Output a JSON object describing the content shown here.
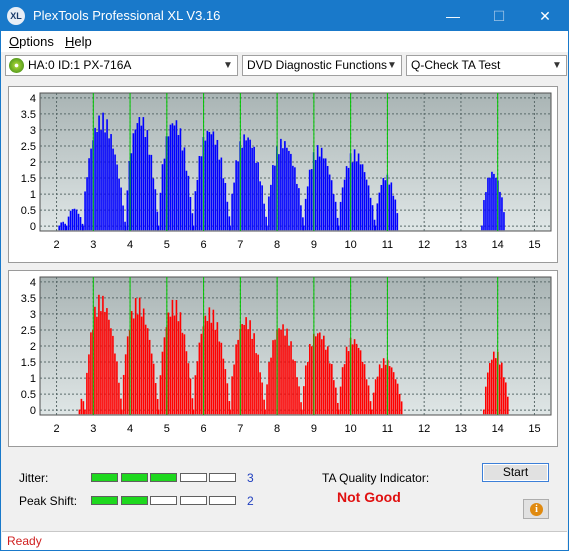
{
  "window": {
    "title": "PlexTools Professional XL V3.16",
    "app_icon_label": "XL",
    "minimize_label": "—",
    "maximize_label": "☐",
    "close_label": "✕"
  },
  "menu": {
    "items": [
      {
        "label": "Options",
        "accel": "O"
      },
      {
        "label": "Help",
        "accel": "H"
      }
    ]
  },
  "toolbar": {
    "drive": "HA:0 ID:1  PX-716A",
    "function": "DVD Diagnostic Functions",
    "test": "Q-Check TA Test"
  },
  "colors": {
    "top_series": "#0000ff",
    "bottom_series": "#ff0000",
    "marker_lines": "#00c800",
    "plot_bg_top": "#a9b4b4",
    "plot_bg_bottom": "#dfe6e6",
    "status_text": "#d02020",
    "not_good": "#e01010"
  },
  "chart_data": [
    {
      "type": "area",
      "x_ticks": [
        "2",
        "3",
        "4",
        "5",
        "6",
        "7",
        "8",
        "9",
        "10",
        "11",
        "12",
        "13",
        "14",
        "15"
      ],
      "y_ticks": [
        "0",
        "0.5",
        "1",
        "1.5",
        "2",
        "2.5",
        "3",
        "3.5",
        "4"
      ],
      "xlim": [
        1.55,
        15.45
      ],
      "ylim": [
        -0.15,
        4.15
      ],
      "grid": true,
      "marker_lines_x": [
        3,
        4,
        5,
        6,
        7,
        8,
        9,
        10,
        11,
        14
      ],
      "series": [
        {
          "color": "#0000ff",
          "peaks": [
            {
              "x0": 2.05,
              "x1": 2.25,
              "peak": 0.15
            },
            {
              "x0": 2.25,
              "x1": 2.7,
              "peak": 0.6
            },
            {
              "x0": 2.7,
              "x1": 3.85,
              "peak": 3.55
            },
            {
              "x0": 3.85,
              "x1": 4.75,
              "peak": 3.6
            },
            {
              "x0": 4.75,
              "x1": 5.7,
              "peak": 3.5
            },
            {
              "x0": 5.7,
              "x1": 6.7,
              "peak": 3.2
            },
            {
              "x0": 6.7,
              "x1": 7.7,
              "peak": 3.0
            },
            {
              "x0": 7.7,
              "x1": 8.7,
              "peak": 2.8
            },
            {
              "x0": 8.7,
              "x1": 9.65,
              "peak": 2.55
            },
            {
              "x0": 9.65,
              "x1": 10.65,
              "peak": 2.4
            },
            {
              "x0": 10.65,
              "x1": 11.3,
              "peak": 1.65
            },
            {
              "x0": 13.55,
              "x1": 14.2,
              "peak": 1.8
            }
          ]
        }
      ]
    },
    {
      "type": "area",
      "x_ticks": [
        "2",
        "3",
        "4",
        "5",
        "6",
        "7",
        "8",
        "9",
        "10",
        "11",
        "12",
        "13",
        "14",
        "15"
      ],
      "y_ticks": [
        "0",
        "0.5",
        "1",
        "1.5",
        "2",
        "2.5",
        "3",
        "3.5",
        "4"
      ],
      "xlim": [
        1.55,
        15.45
      ],
      "ylim": [
        -0.15,
        4.15
      ],
      "grid": true,
      "marker_lines_x": [
        3,
        4,
        5,
        6,
        7,
        8,
        9,
        10,
        11,
        14
      ],
      "series": [
        {
          "color": "#ff0000",
          "peaks": [
            {
              "x0": 2.6,
              "x1": 2.75,
              "peak": 0.4
            },
            {
              "x0": 2.75,
              "x1": 3.75,
              "peak": 3.65
            },
            {
              "x0": 3.75,
              "x1": 4.75,
              "peak": 3.55
            },
            {
              "x0": 4.75,
              "x1": 5.7,
              "peak": 3.5
            },
            {
              "x0": 5.7,
              "x1": 6.7,
              "peak": 3.25
            },
            {
              "x0": 6.7,
              "x1": 7.65,
              "peak": 3.0
            },
            {
              "x0": 7.65,
              "x1": 8.65,
              "peak": 2.8
            },
            {
              "x0": 8.65,
              "x1": 9.65,
              "peak": 2.6
            },
            {
              "x0": 9.65,
              "x1": 10.55,
              "peak": 2.35
            },
            {
              "x0": 10.55,
              "x1": 11.4,
              "peak": 1.65
            },
            {
              "x0": 13.6,
              "x1": 14.3,
              "peak": 1.9
            }
          ]
        }
      ]
    }
  ],
  "bottom": {
    "jitter_label": "Jitter:",
    "peak_shift_label": "Peak Shift:",
    "jitter_value": "3",
    "peak_shift_value": "2",
    "jitter_level": 3,
    "peak_shift_level": 2,
    "segments_total": 5,
    "ta_label": "TA Quality Indicator:",
    "ta_result": "Not Good",
    "start_label": "Start",
    "info_glyph": "i"
  },
  "status": {
    "text": "Ready"
  }
}
